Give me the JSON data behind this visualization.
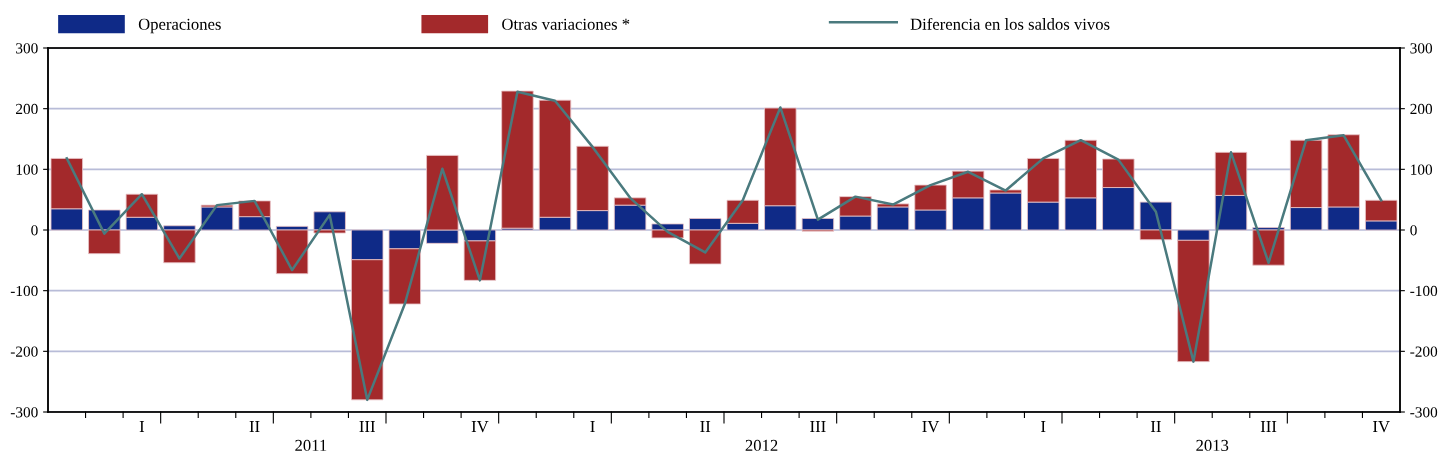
{
  "chart_data": {
    "type": "bar",
    "stacked": true,
    "categories": [
      null,
      null,
      "I",
      null,
      null,
      "II",
      null,
      null,
      "III",
      null,
      null,
      "IV",
      null,
      null,
      "I",
      null,
      null,
      "II",
      null,
      null,
      "III",
      null,
      null,
      "IV",
      null,
      null,
      "I",
      null,
      null,
      "II",
      null,
      null,
      "III",
      null,
      null,
      "IV"
    ],
    "series": [
      {
        "name": "Operaciones",
        "color": "#0f2a87",
        "values": [
          35,
          33,
          21,
          7,
          38,
          22,
          6,
          30,
          -49,
          -31,
          -22,
          -18,
          3,
          21,
          32,
          41,
          10,
          19,
          11,
          40,
          19,
          23,
          38,
          33,
          53,
          61,
          46,
          53,
          70,
          46,
          -17,
          57,
          4,
          37,
          38,
          15
        ]
      },
      {
        "name": "Otras variaciones *",
        "color": "#a3292b",
        "values": [
          83,
          -39,
          38,
          -54,
          3,
          26,
          -72,
          -5,
          -231,
          -91,
          123,
          -65,
          226,
          193,
          106,
          12,
          -13,
          -56,
          38,
          161,
          -2,
          32,
          5,
          41,
          44,
          5,
          72,
          95,
          47,
          -16,
          -200,
          71,
          -58,
          111,
          119,
          34
        ]
      },
      {
        "name": "Diferencia en los saldos vivos",
        "type": "line",
        "color": "#4a7a7e",
        "values": [
          118,
          -6,
          59,
          -47,
          41,
          48,
          -66,
          25,
          -280,
          -122,
          101,
          -83,
          228,
          213,
          137,
          53,
          -3,
          -37,
          49,
          202,
          17,
          55,
          42,
          74,
          96,
          65,
          118,
          148,
          116,
          30,
          -217,
          128,
          -54,
          148,
          156,
          49
        ]
      }
    ],
    "ylim": [
      -300,
      300
    ],
    "yticks": [
      -300,
      -200,
      -100,
      0,
      100,
      200,
      300
    ],
    "y2lim": [
      -300,
      300
    ],
    "y2ticks": [
      -300,
      -200,
      -100,
      0,
      100,
      200,
      300
    ],
    "grid": "y",
    "legend": "top",
    "annotations": [
      "2011",
      "2012",
      "2013"
    ]
  }
}
